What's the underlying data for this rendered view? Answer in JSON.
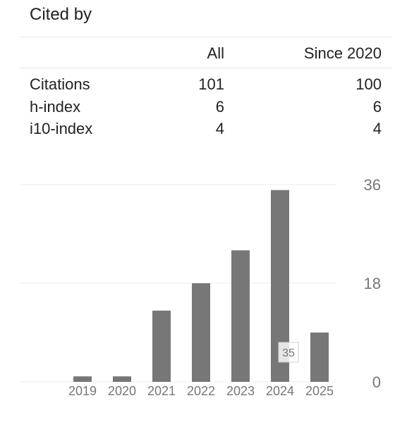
{
  "panel": {
    "title": "Cited by",
    "columns": {
      "all": "All",
      "since": "Since 2020"
    },
    "rows": [
      {
        "label": "Citations",
        "all": "101",
        "since": "100"
      },
      {
        "label": "h-index",
        "all": "6",
        "since": "6"
      },
      {
        "label": "i10-index",
        "all": "4",
        "since": "4"
      }
    ]
  },
  "chart_data": {
    "type": "bar",
    "categories": [
      "2019",
      "2020",
      "2021",
      "2022",
      "2023",
      "2024",
      "2025"
    ],
    "values": [
      1,
      1,
      13,
      18,
      24,
      35,
      9
    ],
    "yticks": [
      "0",
      "18",
      "36"
    ],
    "ylim": [
      0,
      36
    ],
    "tooltip": "35",
    "grid": true,
    "bar_color": "#777777",
    "grid_color": "#eeeeee",
    "axis_label_color": "#777777"
  }
}
